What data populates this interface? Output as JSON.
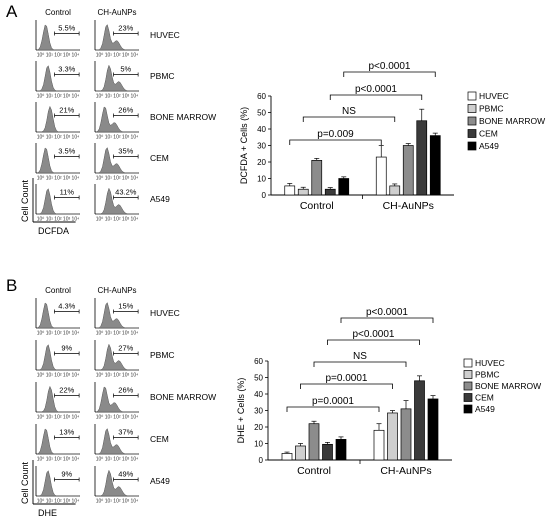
{
  "panels": [
    {
      "letter": "A",
      "hist": {
        "col_labels": [
          "Control",
          "CH-AuNPs"
        ],
        "row_labels": [
          "HUVEC",
          "PBMC",
          "BONE MARROW",
          "CEM",
          "A549"
        ],
        "percents": [
          [
            "5.5%",
            "23%"
          ],
          [
            "3.3%",
            "5%"
          ],
          [
            "21%",
            "26%"
          ],
          [
            "3.5%",
            "35%"
          ],
          [
            "11%",
            "43.2%"
          ]
        ],
        "ylabel": "Cell Count",
        "xlabel": "DCFDA",
        "tick_label": "10⁰ 10¹ 10² 10³ 10⁴"
      }
    },
    {
      "letter": "B",
      "hist": {
        "col_labels": [
          "Control",
          "CH-AuNPs"
        ],
        "row_labels": [
          "HUVEC",
          "PBMC",
          "BONE MARROW",
          "CEM",
          "A549"
        ],
        "percents": [
          [
            "4.3%",
            "15%"
          ],
          [
            "9%",
            "27%"
          ],
          [
            "22%",
            "26%"
          ],
          [
            "13%",
            "37%"
          ],
          [
            "9%",
            "49%"
          ]
        ],
        "ylabel": "Cell Count",
        "xlabel": "DHE",
        "tick_label": "10⁰ 10¹ 10² 10³ 10⁴"
      }
    }
  ],
  "chart_data": [
    {
      "type": "bar",
      "categories": [
        "Control",
        "CH-AuNPs"
      ],
      "ylabel": "DCFDA + Cells (%)",
      "ylim": [
        0,
        60
      ],
      "yticks": [
        0,
        10,
        20,
        30,
        40,
        50,
        60
      ],
      "series": [
        {
          "name": "HUVEC",
          "color": "#ffffff",
          "values": [
            5.5,
            23
          ],
          "errors": [
            1.5,
            7
          ]
        },
        {
          "name": "PBMC",
          "color": "#cfcfcf",
          "values": [
            3.5,
            5.5
          ],
          "errors": [
            1.2,
            1.2
          ]
        },
        {
          "name": "BONE MARROW",
          "color": "#8c8c8c",
          "values": [
            21,
            30
          ],
          "errors": [
            1.2,
            1.2
          ]
        },
        {
          "name": "CEM",
          "color": "#3a3a3a",
          "values": [
            3.5,
            45
          ],
          "errors": [
            1.0,
            7
          ]
        },
        {
          "name": "A549",
          "color": "#000000",
          "values": [
            10,
            36
          ],
          "errors": [
            1.0,
            1.5
          ]
        }
      ],
      "comparisons": [
        {
          "label": "p=0.009",
          "from_series": "HUVEC"
        },
        {
          "label": "NS",
          "from_series": "PBMC"
        },
        {
          "label": "p<0.0001",
          "from_series": "CEM"
        },
        {
          "label": "p<0.0001",
          "from_series": "A549"
        }
      ]
    },
    {
      "type": "bar",
      "categories": [
        "Control",
        "CH-AuNPs"
      ],
      "ylabel": "DHE + Cells (%)",
      "ylim": [
        0,
        60
      ],
      "yticks": [
        0,
        10,
        20,
        30,
        40,
        50,
        60
      ],
      "series": [
        {
          "name": "HUVEC",
          "color": "#ffffff",
          "values": [
            4,
            18
          ],
          "errors": [
            0.8,
            4
          ]
        },
        {
          "name": "PBMC",
          "color": "#cfcfcf",
          "values": [
            8.5,
            28.5
          ],
          "errors": [
            1.5,
            1.5
          ]
        },
        {
          "name": "BONE MARROW",
          "color": "#8c8c8c",
          "values": [
            22,
            31
          ],
          "errors": [
            1.5,
            5
          ]
        },
        {
          "name": "CEM",
          "color": "#3a3a3a",
          "values": [
            9.5,
            48
          ],
          "errors": [
            1.2,
            3
          ]
        },
        {
          "name": "A549",
          "color": "#000000",
          "values": [
            12.5,
            37
          ],
          "errors": [
            1.5,
            2
          ]
        }
      ],
      "comparisons": [
        {
          "label": "p=0.0001",
          "from_series": "HUVEC"
        },
        {
          "label": "p=0.0001",
          "from_series": "PBMC"
        },
        {
          "label": "NS",
          "from_series": "BONE MARROW"
        },
        {
          "label": "p<0.0001",
          "from_series": "CEM"
        },
        {
          "label": "p<0.0001",
          "from_series": "A549"
        }
      ]
    }
  ]
}
